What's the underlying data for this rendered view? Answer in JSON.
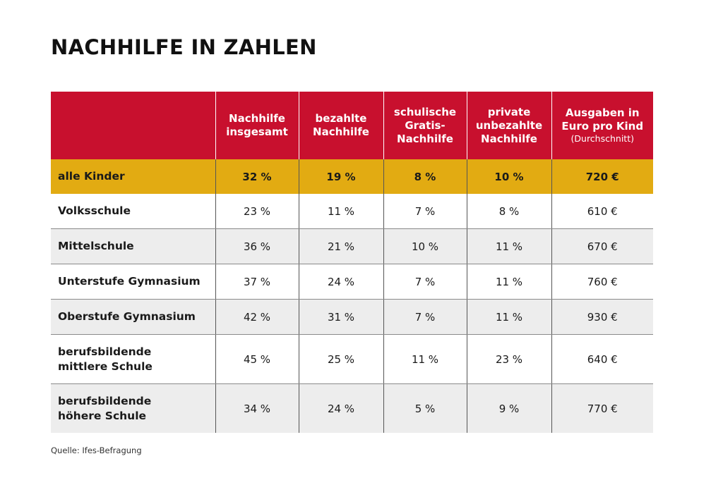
{
  "title": "NACHHILFE IN ZAHLEN",
  "table": {
    "headers": [
      {
        "lines": [
          ""
        ],
        "sub": ""
      },
      {
        "lines": [
          "Nachhilfe",
          "insgesamt"
        ],
        "sub": ""
      },
      {
        "lines": [
          "bezahlte",
          "Nachhilfe"
        ],
        "sub": ""
      },
      {
        "lines": [
          "schulische",
          "Gratis-",
          "Nachhilfe"
        ],
        "sub": ""
      },
      {
        "lines": [
          "private",
          "unbezahlte",
          "Nachhilfe"
        ],
        "sub": ""
      },
      {
        "lines": [
          "Ausgaben in",
          "Euro pro Kind"
        ],
        "sub": "(Durchschnitt)"
      }
    ],
    "rows": [
      {
        "label": [
          "alle Kinder"
        ],
        "values": [
          "32 %",
          "19 %",
          "8 %",
          "10 %",
          "720 €"
        ]
      },
      {
        "label": [
          "Volksschule"
        ],
        "values": [
          "23 %",
          "11 %",
          "7 %",
          "8 %",
          "610 €"
        ]
      },
      {
        "label": [
          "Mittelschule"
        ],
        "values": [
          "36 %",
          "21 %",
          "10 %",
          "11 %",
          "670 €"
        ]
      },
      {
        "label": [
          "Unterstufe Gymnasium"
        ],
        "values": [
          "37 %",
          "24 %",
          "7 %",
          "11 %",
          "760 €"
        ]
      },
      {
        "label": [
          "Oberstufe Gymnasium"
        ],
        "values": [
          "42 %",
          "31 %",
          "7 %",
          "11 %",
          "930 €"
        ]
      },
      {
        "label": [
          "berufsbildende",
          "mittlere Schule"
        ],
        "values": [
          "45 %",
          "25 %",
          "11 %",
          "23 %",
          "640 €"
        ]
      },
      {
        "label": [
          "berufsbildende",
          "höhere Schule"
        ],
        "values": [
          "34 %",
          "24 %",
          "5 %",
          "9 %",
          "770 €"
        ]
      }
    ]
  },
  "source": "Quelle: Ifes-Befragung",
  "colors": {
    "header_red": "#c8102e",
    "highlight_gold": "#e2ab12",
    "row_grey": "#ededed"
  }
}
